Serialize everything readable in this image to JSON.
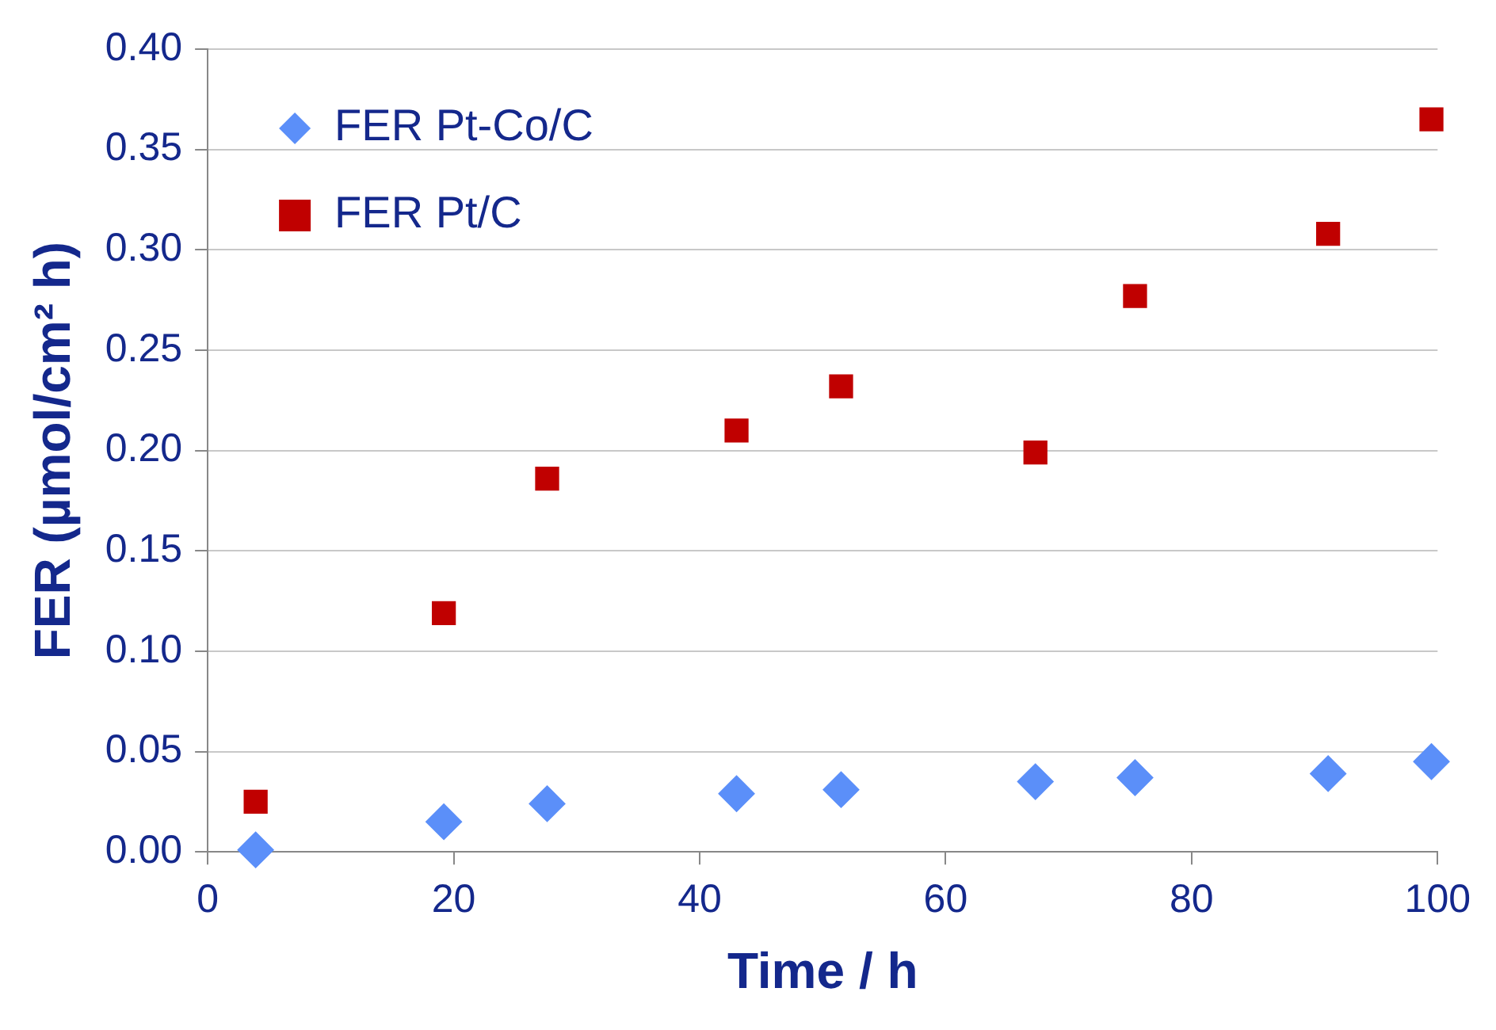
{
  "chart_data": {
    "type": "scatter",
    "xlabel": "Time / h",
    "ylabel": "FER (µmol/cm² h)",
    "xlim": [
      0,
      100
    ],
    "xticks": [
      0,
      20,
      40,
      60,
      80,
      100
    ],
    "ylim": [
      0,
      0.4
    ],
    "yticks": [
      {
        "value": 0,
        "label": "0.00"
      },
      {
        "value": 0.05,
        "label": "0.05"
      },
      {
        "value": 0.1,
        "label": "0.10"
      },
      {
        "value": 0.15,
        "label": "0.15"
      },
      {
        "value": 0.2,
        "label": "0.20"
      },
      {
        "value": 0.25,
        "label": "0.25"
      },
      {
        "value": 0.3,
        "label": "0.30"
      },
      {
        "value": 0.35,
        "label": "0.35"
      },
      {
        "value": 0.4,
        "label": "0.40"
      }
    ],
    "grid": "y",
    "legend": "top left",
    "series": [
      {
        "name": "FER Pt-Co/C",
        "color": "#5b8ff9",
        "marker": "diamond",
        "x": [
          3.9,
          19.2,
          27.6,
          43,
          51.5,
          67.3,
          75.4,
          91.1,
          99.5
        ],
        "values": [
          0.001,
          0.015,
          0.024,
          0.029,
          0.031,
          0.035,
          0.037,
          0.039,
          0.045
        ]
      },
      {
        "name": "FER Pt/C",
        "color": "#c00000",
        "marker": "square",
        "x": [
          3.9,
          19.2,
          27.6,
          43,
          51.5,
          67.3,
          75.4,
          91.1,
          99.5
        ],
        "values": [
          0.025,
          0.119,
          0.186,
          0.21,
          0.232,
          0.199,
          0.277,
          0.308,
          0.365
        ]
      }
    ]
  }
}
